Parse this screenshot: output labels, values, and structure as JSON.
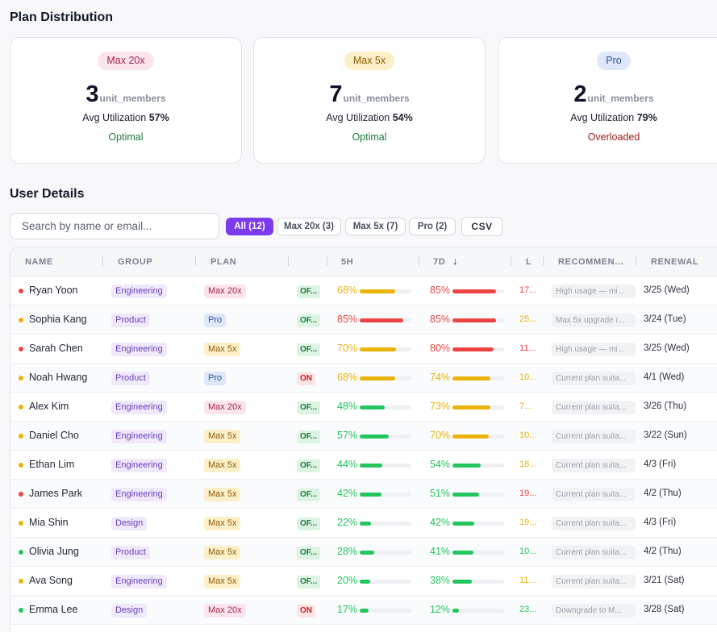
{
  "plan_distribution": {
    "title": "Plan Distribution",
    "cards": [
      {
        "badge": "Max 20x",
        "badge_bg": "#fce4ee",
        "badge_color": "#a3244f",
        "count": "3",
        "unit": "unit_members",
        "util_label": "Avg Utilization",
        "util_value": "57%",
        "status": "Optimal",
        "status_color": "#1f7a3d"
      },
      {
        "badge": "Max 5x",
        "badge_bg": "#fdf0c8",
        "badge_color": "#8a5a06",
        "count": "7",
        "unit": "unit_members",
        "util_label": "Avg Utilization",
        "util_value": "54%",
        "status": "Optimal",
        "status_color": "#1f7a3d"
      },
      {
        "badge": "Pro",
        "badge_bg": "#dfe8fb",
        "badge_color": "#2c4f9e",
        "count": "2",
        "unit": "unit_members",
        "util_label": "Avg Utilization",
        "util_value": "79%",
        "status": "Overloaded",
        "status_color": "#a61b1b"
      }
    ]
  },
  "user_details": {
    "title": "User Details",
    "search_placeholder": "Search by name or email...",
    "filters": [
      "All (12)",
      "Max 20x (3)",
      "Max 5x (7)",
      "Pro (2)"
    ],
    "csv_label": "CSV",
    "columns": [
      "NAME",
      "GROUP",
      "PLAN",
      "5H",
      "7D",
      "L",
      "RECOMMEN...",
      "RENEWAL"
    ],
    "rows": [
      {
        "dot": "#ef4444",
        "name": "Ryan Yoon",
        "group": "Engineering",
        "plan": "Max 20x",
        "mode": "OF...",
        "h5": "68%",
        "h5v": 0.68,
        "h5c": "#eab308",
        "d7": "85%",
        "d7v": 0.85,
        "d7c": "#ef4444",
        "l": "17...",
        "lc": "#ef4444",
        "rec": "High usage — mi...",
        "renewal": "3/25 (Wed)"
      },
      {
        "dot": "#eab308",
        "name": "Sophia Kang",
        "group": "Product",
        "plan": "Pro",
        "mode": "OF...",
        "h5": "85%",
        "h5v": 0.85,
        "h5c": "#ef4444",
        "d7": "85%",
        "d7v": 0.85,
        "d7c": "#ef4444",
        "l": "25...",
        "lc": "#eab308",
        "rec": "Max 5x upgrade r...",
        "renewal": "3/24 (Tue)"
      },
      {
        "dot": "#ef4444",
        "name": "Sarah Chen",
        "group": "Engineering",
        "plan": "Max 5x",
        "mode": "OF...",
        "h5": "70%",
        "h5v": 0.7,
        "h5c": "#eab308",
        "d7": "80%",
        "d7v": 0.8,
        "d7c": "#ef4444",
        "l": "11...",
        "lc": "#ef4444",
        "rec": "High usage — mi...",
        "renewal": "3/25 (Wed)"
      },
      {
        "dot": "#eab308",
        "name": "Noah Hwang",
        "group": "Product",
        "plan": "Pro",
        "mode": "ON",
        "h5": "68%",
        "h5v": 0.68,
        "h5c": "#eab308",
        "d7": "74%",
        "d7v": 0.74,
        "d7c": "#eab308",
        "l": "10...",
        "lc": "#eab308",
        "rec": "Current plan suita...",
        "renewal": "4/1 (Wed)"
      },
      {
        "dot": "#eab308",
        "name": "Alex Kim",
        "group": "Engineering",
        "plan": "Max 20x",
        "mode": "OF...",
        "h5": "48%",
        "h5v": 0.48,
        "h5c": "#22c55e",
        "d7": "73%",
        "d7v": 0.73,
        "d7c": "#eab308",
        "l": "7...",
        "lc": "#eab308",
        "rec": "Current plan suita...",
        "renewal": "3/26 (Thu)"
      },
      {
        "dot": "#eab308",
        "name": "Daniel Cho",
        "group": "Engineering",
        "plan": "Max 5x",
        "mode": "OF...",
        "h5": "57%",
        "h5v": 0.57,
        "h5c": "#22c55e",
        "d7": "70%",
        "d7v": 0.7,
        "d7c": "#eab308",
        "l": "10...",
        "lc": "#eab308",
        "rec": "Current plan suita...",
        "renewal": "3/22 (Sun)"
      },
      {
        "dot": "#eab308",
        "name": "Ethan Lim",
        "group": "Engineering",
        "plan": "Max 5x",
        "mode": "OF...",
        "h5": "44%",
        "h5v": 0.44,
        "h5c": "#22c55e",
        "d7": "54%",
        "d7v": 0.54,
        "d7c": "#22c55e",
        "l": "18...",
        "lc": "#eab308",
        "rec": "Current plan suita...",
        "renewal": "4/3 (Fri)"
      },
      {
        "dot": "#ef4444",
        "name": "James Park",
        "group": "Engineering",
        "plan": "Max 5x",
        "mode": "OF...",
        "h5": "42%",
        "h5v": 0.42,
        "h5c": "#22c55e",
        "d7": "51%",
        "d7v": 0.51,
        "d7c": "#22c55e",
        "l": "19...",
        "lc": "#ef4444",
        "rec": "Current plan suita...",
        "renewal": "4/2 (Thu)"
      },
      {
        "dot": "#eab308",
        "name": "Mia Shin",
        "group": "Design",
        "plan": "Max 5x",
        "mode": "OF...",
        "h5": "22%",
        "h5v": 0.22,
        "h5c": "#22c55e",
        "d7": "42%",
        "d7v": 0.42,
        "d7c": "#22c55e",
        "l": "19...",
        "lc": "#eab308",
        "rec": "Current plan suita...",
        "renewal": "4/3 (Fri)"
      },
      {
        "dot": "#22c55e",
        "name": "Olivia Jung",
        "group": "Product",
        "plan": "Max 5x",
        "mode": "OF...",
        "h5": "28%",
        "h5v": 0.28,
        "h5c": "#22c55e",
        "d7": "41%",
        "d7v": 0.41,
        "d7c": "#22c55e",
        "l": "10...",
        "lc": "#22c55e",
        "rec": "Current plan suita...",
        "renewal": "4/2 (Thu)"
      },
      {
        "dot": "#eab308",
        "name": "Ava Song",
        "group": "Engineering",
        "plan": "Max 5x",
        "mode": "OF...",
        "h5": "20%",
        "h5v": 0.2,
        "h5c": "#22c55e",
        "d7": "38%",
        "d7v": 0.38,
        "d7c": "#22c55e",
        "l": "11...",
        "lc": "#eab308",
        "rec": "Current plan suita...",
        "renewal": "3/21 (Sat)"
      },
      {
        "dot": "#22c55e",
        "name": "Emma Lee",
        "group": "Design",
        "plan": "Max 20x",
        "mode": "ON",
        "h5": "17%",
        "h5v": 0.17,
        "h5c": "#22c55e",
        "d7": "12%",
        "d7v": 0.12,
        "d7c": "#22c55e",
        "l": "23...",
        "lc": "#22c55e",
        "rec": "Downgrade to M...",
        "renewal": "3/28 (Sat)"
      }
    ]
  }
}
